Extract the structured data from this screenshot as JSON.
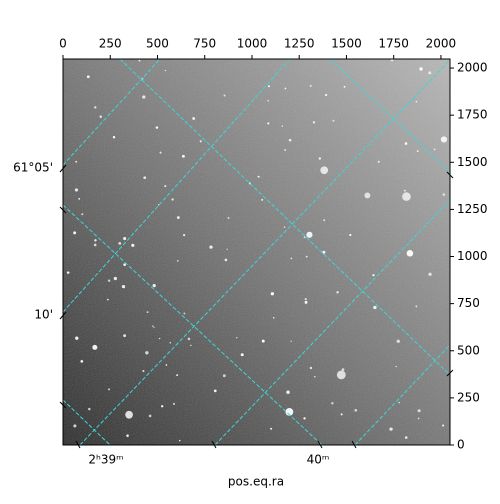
{
  "chart_data": {
    "type": "image",
    "xlabel": "pos.eq.ra",
    "xlim": [
      0,
      2048
    ],
    "ylim": [
      0,
      2048
    ],
    "xticks": [
      0,
      250,
      500,
      750,
      1000,
      1250,
      1500,
      1750,
      2000
    ],
    "yticks": [
      0,
      250,
      500,
      750,
      1000,
      1250,
      1500,
      1750,
      2000
    ],
    "dec_labels": [
      "61°05'",
      "10'"
    ],
    "ra_labels": [
      "2ʰ39ᵐ",
      "40ᵐ"
    ],
    "grid_color": "#3fd6d6"
  }
}
